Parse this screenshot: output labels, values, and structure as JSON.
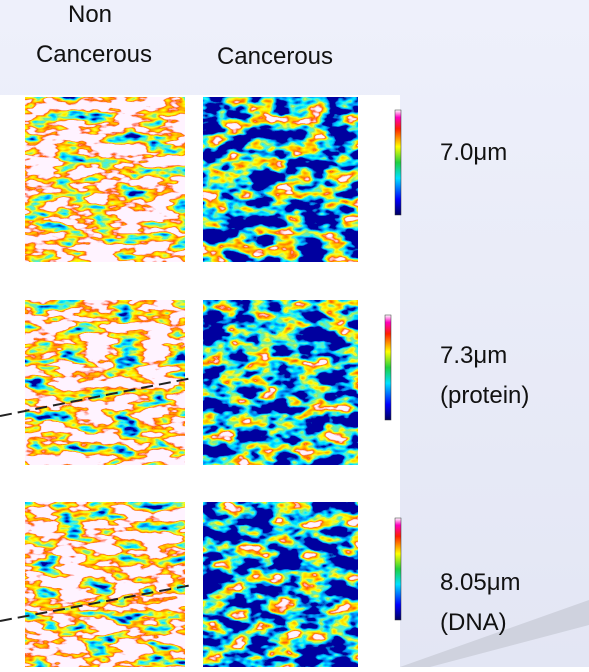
{
  "header": {
    "column_1": [
      "Non",
      "Cancerous"
    ],
    "column_2": "Cancerous"
  },
  "rows": [
    {
      "wavelength": "7.0μm"
    },
    {
      "wavelength": "7.3μm",
      "note": "(protein)"
    },
    {
      "wavelength": "8.05μm",
      "note": "(DNA)"
    }
  ]
}
